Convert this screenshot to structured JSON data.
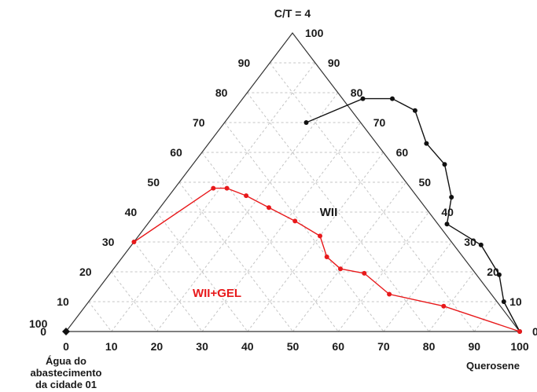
{
  "chart_data": {
    "type": "ternary",
    "title": "C/T = 4",
    "vertices": {
      "top": "C/T = 4",
      "left": [
        "Água do",
        "abastecimento",
        "da cidade 01"
      ],
      "right": "Querosene"
    },
    "ticks": {
      "bottom": [
        "0",
        "10",
        "20",
        "30",
        "40",
        "50",
        "60",
        "70",
        "80",
        "90",
        "100"
      ],
      "left": [
        "100",
        "90",
        "80",
        "70",
        "60",
        "50",
        "40",
        "30",
        "20",
        "10",
        "0"
      ],
      "right": [
        "100",
        "90",
        "80",
        "70",
        "60",
        "50",
        "40",
        "30",
        "20",
        "10",
        "0"
      ]
    },
    "grid": true,
    "region_labels": [
      {
        "text": "WII",
        "color": "#1a1a1a"
      },
      {
        "text": "WII+GEL",
        "color": "#e8191b"
      }
    ],
    "series": [
      {
        "color": "#111111",
        "points": [
          {
            "q": 18,
            "ct": 70
          },
          {
            "q": 26.5,
            "ct": 78
          },
          {
            "q": 33,
            "ct": 78
          },
          {
            "q": 40,
            "ct": 74
          },
          {
            "q": 48,
            "ct": 63
          },
          {
            "q": 55.5,
            "ct": 56
          },
          {
            "q": 62.5,
            "ct": 45
          },
          {
            "q": 66,
            "ct": 36
          },
          {
            "q": 77,
            "ct": 29
          },
          {
            "q": 86,
            "ct": 19
          },
          {
            "q": 91.5,
            "ct": 10
          },
          {
            "q": 100,
            "ct": 0
          }
        ]
      },
      {
        "color": "#e8191b",
        "points": [
          {
            "q": 0,
            "ct": 30
          },
          {
            "q": 8.5,
            "ct": 48
          },
          {
            "q": 11.5,
            "ct": 48
          },
          {
            "q": 17,
            "ct": 45.5
          },
          {
            "q": 24,
            "ct": 41.5
          },
          {
            "q": 32,
            "ct": 37
          },
          {
            "q": 40,
            "ct": 32
          },
          {
            "q": 45,
            "ct": 25
          },
          {
            "q": 50,
            "ct": 21
          },
          {
            "q": 56,
            "ct": 19.5
          },
          {
            "q": 65,
            "ct": 12.5
          },
          {
            "q": 79,
            "ct": 8.5
          },
          {
            "q": 100,
            "ct": 0
          }
        ]
      }
    ],
    "corner_marker": {
      "vertex": "left",
      "shape": "diamond",
      "color": "#111111"
    }
  }
}
